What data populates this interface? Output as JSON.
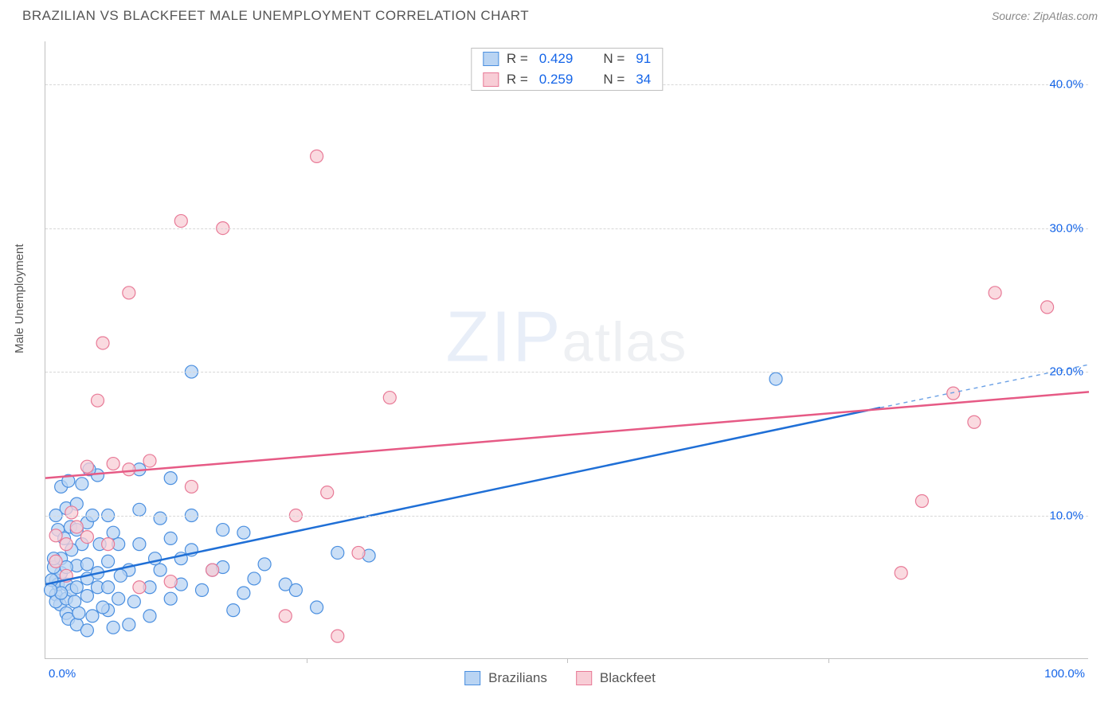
{
  "title": "BRAZILIAN VS BLACKFEET MALE UNEMPLOYMENT CORRELATION CHART",
  "source": "Source: ZipAtlas.com",
  "watermark_a": "ZIP",
  "watermark_b": "atlas",
  "y_axis_label": "Male Unemployment",
  "chart": {
    "type": "scatter",
    "xlim": [
      0,
      100
    ],
    "ylim": [
      0,
      43
    ],
    "y_ticks": [
      10,
      20,
      30,
      40
    ],
    "y_tick_labels": [
      "10.0%",
      "20.0%",
      "30.0%",
      "40.0%"
    ],
    "x_ticks": [
      0,
      25,
      50,
      75,
      100
    ],
    "x_left_label": "0.0%",
    "x_right_label": "100.0%",
    "background_color": "#ffffff",
    "grid_color": "#d8d8d8",
    "series": [
      {
        "name": "Brazilians",
        "marker_fill": "#b9d4f3",
        "marker_stroke": "#4a8fe0",
        "marker_opacity": 0.75,
        "marker_radius": 8,
        "line_color": "#1f6fd6",
        "line_width": 2.5,
        "line_dash_color": "#6aa0e5",
        "regression": {
          "x1": 0,
          "y1": 5.2,
          "x2": 80,
          "y2": 17.5,
          "dash_to_x": 100,
          "dash_to_y": 20.5
        },
        "R": "0.429",
        "N": "91",
        "points": [
          [
            1,
            5.5
          ],
          [
            1.5,
            6
          ],
          [
            1,
            4.5
          ],
          [
            1.2,
            5.2
          ],
          [
            0.8,
            6.4
          ],
          [
            1.4,
            3.8
          ],
          [
            1,
            4
          ],
          [
            2,
            5.2
          ],
          [
            2,
            4.2
          ],
          [
            2.5,
            4.8
          ],
          [
            3,
            5
          ],
          [
            3,
            6.5
          ],
          [
            1.5,
            7
          ],
          [
            0.6,
            5.5
          ],
          [
            4,
            4.4
          ],
          [
            4,
            5.6
          ],
          [
            5,
            5
          ],
          [
            5,
            6
          ],
          [
            2,
            3.2
          ],
          [
            2.2,
            2.8
          ],
          [
            3,
            2.4
          ],
          [
            6,
            3.4
          ],
          [
            6,
            5
          ],
          [
            7,
            4.2
          ],
          [
            1.2,
            9
          ],
          [
            2.4,
            9.2
          ],
          [
            3,
            9
          ],
          [
            4,
            9.5
          ],
          [
            3.5,
            8
          ],
          [
            2,
            10.5
          ],
          [
            4.5,
            10
          ],
          [
            1,
            10
          ],
          [
            1.5,
            12
          ],
          [
            2.2,
            12.4
          ],
          [
            3.5,
            12.2
          ],
          [
            5,
            12.8
          ],
          [
            4.2,
            13.2
          ],
          [
            9,
            13.2
          ],
          [
            10,
            5
          ],
          [
            11,
            6.2
          ],
          [
            13,
            7
          ],
          [
            12,
            4.2
          ],
          [
            14,
            7.6
          ],
          [
            16,
            6.2
          ],
          [
            15,
            4.8
          ],
          [
            19,
            4.6
          ],
          [
            20,
            5.6
          ],
          [
            23,
            5.2
          ],
          [
            24,
            4.8
          ],
          [
            17,
            9
          ],
          [
            14,
            10
          ],
          [
            19,
            8.8
          ],
          [
            10,
            3
          ],
          [
            18,
            3.4
          ],
          [
            7,
            8
          ],
          [
            9,
            10.4
          ],
          [
            12,
            12.6
          ],
          [
            28,
            7.4
          ],
          [
            31,
            7.2
          ],
          [
            26,
            3.6
          ],
          [
            14,
            20
          ],
          [
            70,
            19.5
          ],
          [
            6,
            10
          ],
          [
            6.5,
            2.2
          ],
          [
            8,
            2.4
          ],
          [
            4,
            2
          ],
          [
            4.5,
            3
          ],
          [
            3.2,
            3.2
          ],
          [
            2.8,
            4
          ],
          [
            5.5,
            3.6
          ],
          [
            1.8,
            8.4
          ],
          [
            3,
            10.8
          ],
          [
            11,
            9.8
          ],
          [
            8,
            6.2
          ],
          [
            9,
            8
          ],
          [
            6.5,
            8.8
          ],
          [
            7.2,
            5.8
          ],
          [
            2.5,
            7.6
          ],
          [
            4,
            6.6
          ],
          [
            5.2,
            8
          ],
          [
            1.5,
            4.6
          ],
          [
            0.5,
            4.8
          ],
          [
            0.8,
            7
          ],
          [
            2,
            6.4
          ],
          [
            6,
            6.8
          ],
          [
            12,
            8.4
          ],
          [
            8.5,
            4
          ],
          [
            10.5,
            7
          ],
          [
            13,
            5.2
          ],
          [
            17,
            6.4
          ],
          [
            21,
            6.6
          ]
        ]
      },
      {
        "name": "Blackfeet",
        "marker_fill": "#f8cdd6",
        "marker_stroke": "#e87a97",
        "marker_opacity": 0.75,
        "marker_radius": 8,
        "line_color": "#e65a85",
        "line_width": 2.5,
        "regression": {
          "x1": 0,
          "y1": 12.6,
          "x2": 100,
          "y2": 18.6
        },
        "R": "0.259",
        "N": "34",
        "points": [
          [
            2,
            8
          ],
          [
            2,
            5.8
          ],
          [
            3,
            9.2
          ],
          [
            4,
            8.5
          ],
          [
            6,
            8
          ],
          [
            6.5,
            13.6
          ],
          [
            8,
            13.2
          ],
          [
            10,
            13.8
          ],
          [
            5,
            18
          ],
          [
            5.5,
            22
          ],
          [
            8,
            25.5
          ],
          [
            13,
            30.5
          ],
          [
            17,
            30
          ],
          [
            26,
            35
          ],
          [
            14,
            12
          ],
          [
            16,
            6.2
          ],
          [
            27,
            11.6
          ],
          [
            24,
            10
          ],
          [
            33,
            18.2
          ],
          [
            30,
            7.4
          ],
          [
            28,
            1.6
          ],
          [
            23,
            3
          ],
          [
            82,
            6
          ],
          [
            84,
            11
          ],
          [
            89,
            16.5
          ],
          [
            87,
            18.5
          ],
          [
            91,
            25.5
          ],
          [
            96,
            24.5
          ],
          [
            4,
            13.4
          ],
          [
            2.5,
            10.2
          ],
          [
            9,
            5
          ],
          [
            12,
            5.4
          ],
          [
            1,
            6.8
          ],
          [
            1,
            8.6
          ]
        ]
      }
    ]
  },
  "legend_top": {
    "R_label": "R =",
    "N_label": "N ="
  },
  "legend_bottom": {
    "items": [
      "Brazilians",
      "Blackfeet"
    ]
  }
}
